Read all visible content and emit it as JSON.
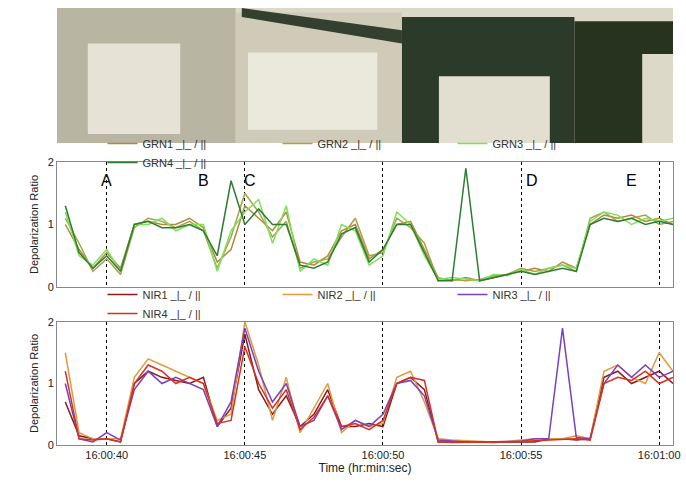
{
  "chart_data": [
    {
      "type": "line",
      "y_label": "Depolarization Ratio",
      "x": [
        38.5,
        39,
        39.5,
        40,
        40.5,
        41,
        41.5,
        42,
        42.5,
        43,
        43.5,
        44,
        44.5,
        45,
        45.5,
        46,
        46.5,
        47,
        47.5,
        48,
        48.5,
        49,
        49.5,
        50,
        50.5,
        51,
        51.5,
        52,
        52.5,
        53,
        53.5,
        54,
        54.5,
        55,
        55.5,
        56,
        56.5,
        57,
        57.5,
        58,
        58.5,
        59,
        59.5,
        60,
        60.5
      ],
      "series": [
        {
          "name": "GRN1 _|_ / ||",
          "color": "#b08a3a",
          "values": [
            1.0,
            0.6,
            0.3,
            0.55,
            0.3,
            1.0,
            1.05,
            1.0,
            1.0,
            1.1,
            0.95,
            0.4,
            0.6,
            1.3,
            1.1,
            0.9,
            1.2,
            0.4,
            0.35,
            0.5,
            0.9,
            1.0,
            0.45,
            0.6,
            1.0,
            1.05,
            0.6,
            0.15,
            0.1,
            0.15,
            0.1,
            0.15,
            0.2,
            0.25,
            0.3,
            0.25,
            0.4,
            0.3,
            1.0,
            1.15,
            1.1,
            1.15,
            1.05,
            1.1,
            1.0
          ]
        },
        {
          "name": "GRN2 _|_ / ||",
          "color": "#a8a24a",
          "values": [
            1.1,
            0.7,
            0.25,
            0.45,
            0.2,
            0.95,
            1.1,
            1.05,
            0.95,
            1.05,
            0.9,
            0.3,
            0.8,
            1.5,
            1.2,
            0.8,
            1.05,
            0.3,
            0.4,
            0.45,
            0.8,
            1.1,
            0.5,
            0.55,
            1.1,
            0.95,
            0.7,
            0.1,
            0.12,
            0.1,
            0.12,
            0.18,
            0.2,
            0.3,
            0.25,
            0.3,
            0.35,
            0.25,
            1.1,
            1.2,
            1.05,
            1.1,
            1.15,
            1.0,
            1.05
          ]
        },
        {
          "name": "GRN3 _|_ / ||",
          "color": "#7ee05a",
          "values": [
            1.2,
            0.5,
            0.35,
            0.6,
            0.25,
            1.0,
            1.0,
            1.1,
            0.9,
            1.0,
            1.0,
            0.25,
            0.9,
            1.2,
            1.4,
            0.7,
            1.3,
            0.25,
            0.45,
            0.35,
            1.0,
            0.9,
            0.35,
            0.5,
            1.2,
            1.0,
            0.5,
            0.12,
            0.15,
            0.12,
            0.1,
            0.2,
            0.18,
            0.28,
            0.2,
            0.3,
            0.35,
            0.3,
            1.05,
            1.2,
            1.15,
            1.0,
            1.1,
            1.05,
            1.1
          ]
        },
        {
          "name": "GRN4 _|_ / ||",
          "color": "#2e7d32",
          "values": [
            1.3,
            0.55,
            0.3,
            0.5,
            0.25,
            1.0,
            1.05,
            0.95,
            0.95,
            1.0,
            0.9,
            0.5,
            1.7,
            1.0,
            1.25,
            1.0,
            1.0,
            0.35,
            0.3,
            0.4,
            0.85,
            0.95,
            0.4,
            0.6,
            1.0,
            1.0,
            0.55,
            0.1,
            0.1,
            1.9,
            0.1,
            0.15,
            0.2,
            0.25,
            0.2,
            0.25,
            0.3,
            0.25,
            1.0,
            1.1,
            1.05,
            1.1,
            1.0,
            1.05,
            1.0
          ]
        }
      ],
      "xlim": [
        38.2,
        60.5
      ],
      "xticks": [
        {
          "value": 40,
          "label": "16:00:40"
        },
        {
          "value": 45,
          "label": "16:00:45"
        },
        {
          "value": 50,
          "label": "16:00:50"
        },
        {
          "value": 55,
          "label": "16:00:55"
        },
        {
          "value": 60,
          "label": "16:01:00"
        }
      ],
      "ylim": [
        0,
        2
      ],
      "yticks": [
        0,
        1,
        2
      ],
      "grid": true,
      "legend": "top",
      "tick_labels": "y",
      "annotations": [
        {
          "text": "A",
          "x": 40.0,
          "y": 1.7
        },
        {
          "text": "B",
          "x": 43.5,
          "y": 1.7
        },
        {
          "text": "C",
          "x": 45.2,
          "y": 1.7
        },
        {
          "text": "D",
          "x": 55.4,
          "y": 1.7
        },
        {
          "text": "E",
          "x": 59.0,
          "y": 1.7
        }
      ]
    },
    {
      "type": "line",
      "x_label": "Time (hr:min:sec)",
      "y_label": "Depolarization Ratio",
      "x": [
        38.5,
        39,
        39.5,
        40,
        40.5,
        41,
        41.5,
        42,
        42.5,
        43,
        43.5,
        44,
        44.5,
        45,
        45.5,
        46,
        46.5,
        47,
        47.5,
        48,
        48.5,
        49,
        49.5,
        50,
        50.5,
        51,
        51.5,
        52,
        52.5,
        53,
        53.5,
        54,
        54.5,
        55,
        55.5,
        56,
        56.5,
        57,
        57.5,
        58,
        58.5,
        59,
        59.5,
        60,
        60.5
      ],
      "series": [
        {
          "name": "NIR1 _|_ / ||",
          "color": "#8b1a1a",
          "values": [
            0.7,
            0.15,
            0.1,
            0.1,
            0.05,
            1.0,
            1.2,
            1.1,
            1.05,
            1.0,
            1.1,
            0.3,
            0.6,
            1.8,
            0.9,
            0.5,
            0.8,
            0.3,
            0.5,
            0.9,
            0.3,
            0.3,
            0.35,
            0.3,
            1.0,
            1.1,
            0.9,
            0.05,
            0.05,
            0.05,
            0.05,
            0.05,
            0.05,
            0.05,
            0.05,
            0.1,
            0.1,
            0.08,
            0.1,
            1.1,
            1.2,
            1.0,
            1.1,
            1.2,
            1.0
          ]
        },
        {
          "name": "NIR2 _|_ / ||",
          "color": "#e09a40",
          "values": [
            1.5,
            0.2,
            0.1,
            0.1,
            0.1,
            1.1,
            1.4,
            1.3,
            1.2,
            1.1,
            1.0,
            0.4,
            0.5,
            2.0,
            1.3,
            0.4,
            1.1,
            0.2,
            0.6,
            1.0,
            0.2,
            0.4,
            0.3,
            0.35,
            1.1,
            1.2,
            0.7,
            0.1,
            0.08,
            0.07,
            0.06,
            0.05,
            0.06,
            0.08,
            0.1,
            0.1,
            0.1,
            0.15,
            0.1,
            1.2,
            1.3,
            1.1,
            1.0,
            1.5,
            1.2
          ]
        },
        {
          "name": "NIR3 _|_ / ||",
          "color": "#7b3fc0",
          "values": [
            1.0,
            0.1,
            0.05,
            0.2,
            0.08,
            0.9,
            1.2,
            1.0,
            1.1,
            1.0,
            0.9,
            0.3,
            0.7,
            1.9,
            1.2,
            0.7,
            1.0,
            0.3,
            0.4,
            0.8,
            0.25,
            0.4,
            0.3,
            0.5,
            1.0,
            1.05,
            0.8,
            0.08,
            0.06,
            0.05,
            0.05,
            0.05,
            0.05,
            0.06,
            0.1,
            0.1,
            1.9,
            0.12,
            0.1,
            1.0,
            1.3,
            1.1,
            1.3,
            1.1,
            1.2
          ]
        },
        {
          "name": "NIR4 _|_ / ||",
          "color": "#d83020",
          "values": [
            1.2,
            0.1,
            0.08,
            0.1,
            0.05,
            1.0,
            1.3,
            1.2,
            1.0,
            1.1,
            1.0,
            0.35,
            0.4,
            1.6,
            1.0,
            0.6,
            0.9,
            0.25,
            0.45,
            0.8,
            0.3,
            0.35,
            0.25,
            0.4,
            1.0,
            1.1,
            1.05,
            0.05,
            0.04,
            0.05,
            0.05,
            0.04,
            0.05,
            0.05,
            0.06,
            0.08,
            0.08,
            0.1,
            0.08,
            1.0,
            1.1,
            1.05,
            1.2,
            1.0,
            1.1
          ]
        }
      ],
      "xlim": [
        38.2,
        60.5
      ],
      "xticks": [
        {
          "value": 40,
          "label": "16:00:40"
        },
        {
          "value": 45,
          "label": "16:00:45"
        },
        {
          "value": 50,
          "label": "16:00:50"
        },
        {
          "value": 55,
          "label": "16:00:55"
        },
        {
          "value": 60,
          "label": "16:01:00"
        }
      ],
      "ylim": [
        0,
        2
      ],
      "yticks": [
        0,
        1,
        2
      ],
      "grid": true,
      "legend": "top"
    }
  ]
}
